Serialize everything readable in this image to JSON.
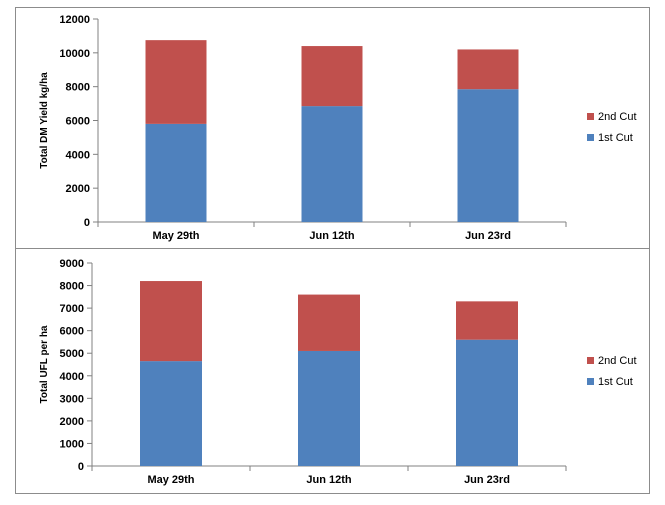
{
  "colors": {
    "first_cut": "#4f81bd",
    "second_cut": "#c0504d",
    "axis": "#808080"
  },
  "chart_data": [
    {
      "type": "bar",
      "stacked": true,
      "categories": [
        "May 29th",
        "Jun 12th",
        "Jun 23rd"
      ],
      "ylabel": "Total DM Yield kg/ha",
      "ylim": [
        0,
        12000
      ],
      "yticks": [
        0,
        2000,
        4000,
        6000,
        8000,
        10000,
        12000
      ],
      "legend_position": "right",
      "series": [
        {
          "name": "1st Cut",
          "values": [
            5800,
            6850,
            7850
          ]
        },
        {
          "name": "2nd Cut",
          "values": [
            4950,
            3550,
            2350
          ]
        }
      ]
    },
    {
      "type": "bar",
      "stacked": true,
      "categories": [
        "May 29th",
        "Jun 12th",
        "Jun 23rd"
      ],
      "ylabel": "Total UFL per ha",
      "ylim": [
        0,
        9000
      ],
      "yticks": [
        0,
        1000,
        2000,
        3000,
        4000,
        5000,
        6000,
        7000,
        8000,
        9000
      ],
      "legend_position": "right",
      "series": [
        {
          "name": "1st Cut",
          "values": [
            4650,
            5100,
            5600
          ]
        },
        {
          "name": "2nd Cut",
          "values": [
            3550,
            2500,
            1700
          ]
        }
      ]
    }
  ]
}
